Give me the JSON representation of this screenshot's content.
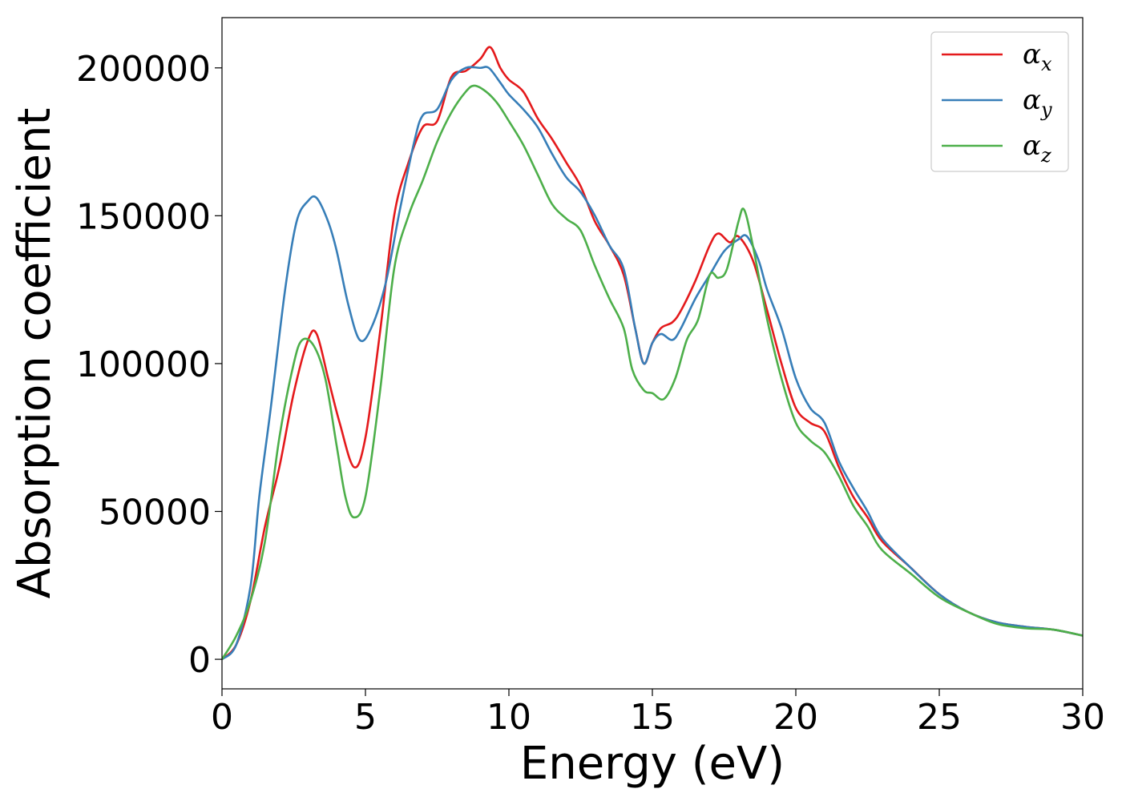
{
  "chart_data": {
    "type": "line",
    "title": "",
    "xlabel": "Energy (eV)",
    "ylabel": "Absorption coefficient",
    "xlim": [
      0,
      30
    ],
    "ylim": [
      -10000,
      217000
    ],
    "xticks": [
      0,
      5,
      10,
      15,
      20,
      25,
      30
    ],
    "xtick_labels": [
      "0",
      "5",
      "10",
      "15",
      "20",
      "25",
      "30"
    ],
    "yticks": [
      0,
      50000,
      100000,
      150000,
      200000
    ],
    "ytick_labels": [
      "0",
      "50000",
      "100000",
      "150000",
      "200000"
    ],
    "grid": false,
    "legend": {
      "placement": "top-right"
    },
    "series": [
      {
        "name": "αx",
        "symbol": "α",
        "subscript": "x",
        "color": "#e41a1c",
        "x": [
          0,
          0.5,
          1,
          1.5,
          2,
          2.5,
          3,
          3.3,
          3.7,
          4.1,
          4.6,
          5.0,
          5.5,
          6.0,
          6.5,
          7.0,
          7.5,
          8.0,
          8.5,
          9.0,
          9.35,
          9.7,
          10.0,
          10.5,
          11.0,
          11.5,
          12.0,
          12.5,
          13.0,
          13.5,
          14.0,
          14.4,
          14.7,
          15.0,
          15.3,
          15.7,
          16.0,
          16.5,
          17.0,
          17.3,
          17.7,
          18.0,
          18.5,
          19.0,
          19.5,
          20.0,
          20.5,
          21.0,
          21.5,
          22.0,
          22.5,
          23.0,
          24.0,
          25.0,
          26.0,
          27.0,
          28.0,
          29.0,
          30.0
        ],
        "y": [
          0,
          5000,
          20000,
          45000,
          65000,
          90000,
          108000,
          110000,
          95000,
          80000,
          65000,
          75000,
          110000,
          150000,
          168000,
          180000,
          182000,
          197000,
          199000,
          203000,
          207000,
          200000,
          196000,
          192000,
          183000,
          176000,
          168000,
          160000,
          148000,
          140000,
          130000,
          112000,
          100000,
          107000,
          112000,
          114000,
          118000,
          128000,
          140000,
          144000,
          141000,
          143000,
          135000,
          118000,
          100000,
          85000,
          80000,
          77000,
          65000,
          55000,
          48000,
          40000,
          31000,
          22000,
          16000,
          12500,
          11000,
          10000,
          8000
        ]
      },
      {
        "name": "αy",
        "symbol": "α",
        "subscript": "y",
        "color": "#377eb8",
        "x": [
          0,
          0.5,
          1,
          1.3,
          1.7,
          2.2,
          2.6,
          3.0,
          3.3,
          3.7,
          4.0,
          4.4,
          4.8,
          5.2,
          5.7,
          6.2,
          6.7,
          7.0,
          7.5,
          8.0,
          8.5,
          9.0,
          9.3,
          9.7,
          10.0,
          10.5,
          11.0,
          11.5,
          12.0,
          12.5,
          13.0,
          13.5,
          14.0,
          14.4,
          14.7,
          15.0,
          15.3,
          15.7,
          16.0,
          16.5,
          17.0,
          17.5,
          18.0,
          18.3,
          18.7,
          19.0,
          19.5,
          20.0,
          20.5,
          21.0,
          21.5,
          22.0,
          22.5,
          23.0,
          24.0,
          25.0,
          26.0,
          27.0,
          28.0,
          29.0,
          30.0
        ],
        "y": [
          0,
          5000,
          25000,
          55000,
          85000,
          125000,
          148000,
          155000,
          156000,
          148000,
          138000,
          120000,
          108000,
          112000,
          127000,
          152000,
          175000,
          184000,
          186000,
          196000,
          200000,
          200000,
          200000,
          195000,
          191000,
          186000,
          180000,
          171000,
          163000,
          158000,
          150000,
          140000,
          132000,
          112000,
          100000,
          107000,
          110000,
          108000,
          112000,
          122000,
          130000,
          138000,
          142000,
          143000,
          135000,
          125000,
          112000,
          95000,
          85000,
          80000,
          67000,
          58000,
          50000,
          41000,
          31000,
          22000,
          16000,
          12500,
          11000,
          10000,
          8000
        ]
      },
      {
        "name": "αz",
        "symbol": "α",
        "subscript": "z",
        "color": "#4daf4a",
        "x": [
          0,
          0.5,
          1,
          1.5,
          2,
          2.5,
          2.8,
          3.2,
          3.6,
          4.0,
          4.3,
          4.6,
          5.0,
          5.5,
          6.0,
          6.5,
          7.0,
          7.5,
          8.0,
          8.5,
          8.8,
          9.2,
          9.6,
          10.0,
          10.5,
          11.0,
          11.5,
          12.0,
          12.5,
          13.0,
          13.5,
          14.0,
          14.3,
          14.7,
          15.0,
          15.4,
          15.8,
          16.2,
          16.6,
          17.0,
          17.3,
          17.6,
          18.0,
          18.2,
          18.5,
          19.0,
          19.5,
          20.0,
          20.5,
          21.0,
          21.5,
          22.0,
          22.5,
          23.0,
          24.0,
          25.0,
          26.0,
          27.0,
          28.0,
          29.0,
          30.0
        ],
        "y": [
          0,
          8000,
          20000,
          40000,
          75000,
          100000,
          108000,
          106000,
          95000,
          72000,
          55000,
          48000,
          55000,
          90000,
          132000,
          150000,
          162000,
          175000,
          185000,
          192000,
          194000,
          192000,
          188000,
          182000,
          174000,
          164000,
          154000,
          149000,
          145000,
          133000,
          122000,
          112000,
          98000,
          91000,
          90000,
          88000,
          95000,
          108000,
          115000,
          130000,
          129000,
          132000,
          148000,
          152000,
          140000,
          115000,
          95000,
          80000,
          74000,
          70000,
          62000,
          52000,
          45000,
          37000,
          29000,
          21000,
          16000,
          12000,
          10500,
          10000,
          8000
        ]
      }
    ]
  }
}
